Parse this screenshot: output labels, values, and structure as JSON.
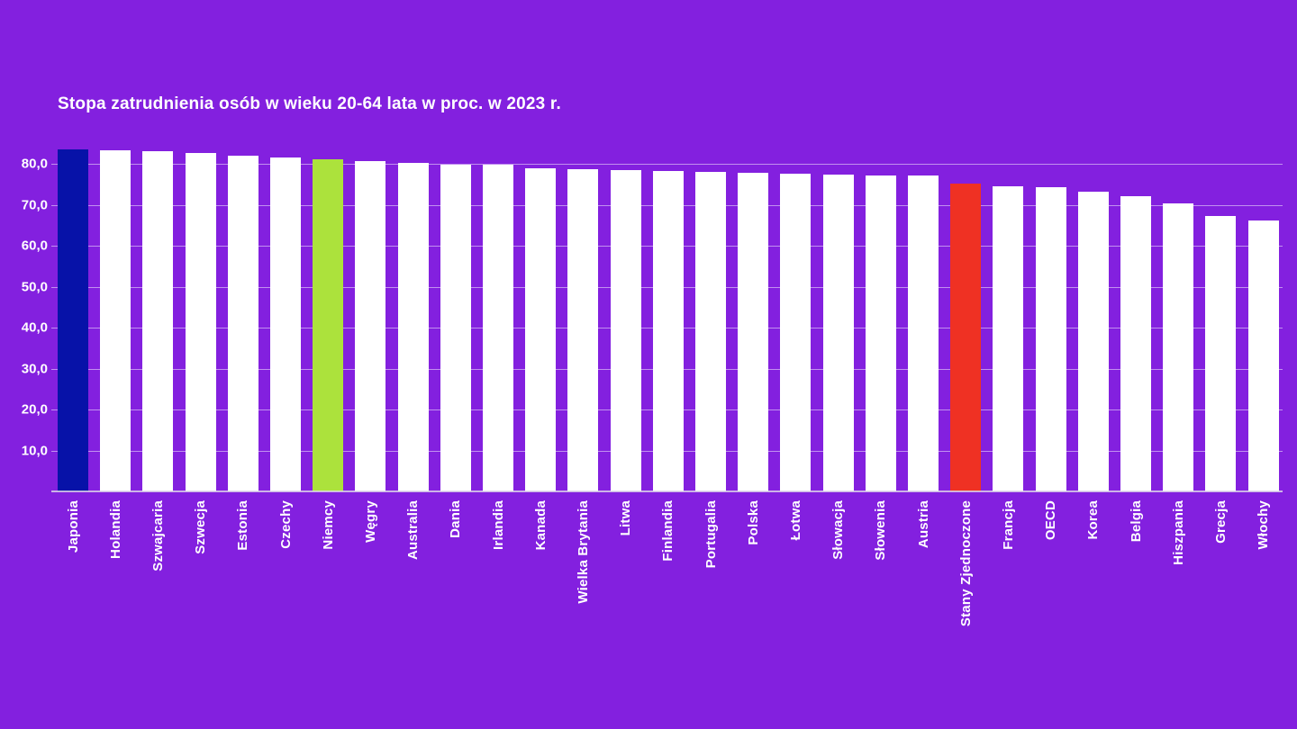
{
  "page": {
    "background_color": "#8320df"
  },
  "chart_data": {
    "type": "bar",
    "title": "Stopa zatrudnienia osób w wieku 20-64 lata w proc. w 2023 r.",
    "categories": [
      "Japonia",
      "Holandia",
      "Szwajcaria",
      "Szwecja",
      "Estonia",
      "Czechy",
      "Niemcy",
      "Węgry",
      "Australia",
      "Dania",
      "Irlandia",
      "Kanada",
      "Wielka Brytania",
      "Litwa",
      "Finlandia",
      "Portugalia",
      "Polska",
      "Łotwa",
      "Słowacja",
      "Słowenia",
      "Austria",
      "Stany Zjednoczone",
      "Francja",
      "OECD",
      "Korea",
      "Belgia",
      "Hiszpania",
      "Grecja",
      "Włochy"
    ],
    "values": [
      83.5,
      83.4,
      83.1,
      82.6,
      81.9,
      81.5,
      81.1,
      80.7,
      80.2,
      79.8,
      79.7,
      78.8,
      78.7,
      78.5,
      78.2,
      78.1,
      77.8,
      77.5,
      77.4,
      77.2,
      77.1,
      75.2,
      74.4,
      74.3,
      73.3,
      72.0,
      70.4,
      67.3,
      66.2
    ],
    "colors": [
      "#0712a8",
      "#ffffff",
      "#ffffff",
      "#ffffff",
      "#ffffff",
      "#ffffff",
      "#ace23c",
      "#ffffff",
      "#ffffff",
      "#ffffff",
      "#ffffff",
      "#ffffff",
      "#ffffff",
      "#ffffff",
      "#ffffff",
      "#ffffff",
      "#ffffff",
      "#ffffff",
      "#ffffff",
      "#ffffff",
      "#ffffff",
      "#ef3123",
      "#ffffff",
      "#ffffff",
      "#ffffff",
      "#ffffff",
      "#ffffff",
      "#ffffff",
      "#ffffff"
    ],
    "highlighted_bars": [
      {
        "category": "Japonia",
        "color": "#0712a8"
      },
      {
        "category": "Niemcy",
        "color": "#ace23c"
      },
      {
        "category": "Stany Zjednoczone",
        "color": "#ef3123"
      }
    ],
    "xlabel": "",
    "ylabel": "",
    "y_axis": {
      "tick_values": [
        10,
        20,
        30,
        40,
        50,
        60,
        70,
        80
      ],
      "tick_labels": [
        "10,0",
        "20,0",
        "30,0",
        "40,0",
        "50,0",
        "60,0",
        "70,0",
        "80,0"
      ],
      "min": 0,
      "max_tick": 80,
      "grid": true,
      "decimal_separator": "comma"
    },
    "legend": "none",
    "bar_label_rotation": "vertical-bottom-to-top"
  }
}
